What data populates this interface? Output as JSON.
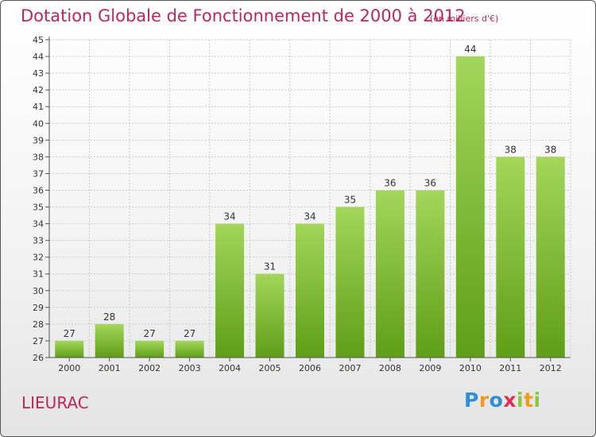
{
  "header": {
    "title": "Dotation Globale de Fonctionnement de 2000 à 2012",
    "subtitle": "(en milliers d'€)"
  },
  "footer": {
    "commune": "LIEURAC",
    "logo_text": "Proxiti",
    "logo_letters": [
      {
        "char": "P",
        "color": "#2e8fd6"
      },
      {
        "char": "r",
        "color": "#f29a1e"
      },
      {
        "char": "o",
        "color": "#2e8fd6"
      },
      {
        "char": "x",
        "color": "#e0305a"
      },
      {
        "char": "i",
        "color": "#8dc63f"
      },
      {
        "char": "t",
        "color": "#f29a1e"
      },
      {
        "char": "i",
        "color": "#8dc63f"
      }
    ]
  },
  "colors": {
    "bar_top": "#a3d65a",
    "bar_bottom": "#5f9e17",
    "title": "#c0245c",
    "grid": "#c8c8c8"
  },
  "chart_data": {
    "type": "bar",
    "categories": [
      "2000",
      "2001",
      "2002",
      "2003",
      "2004",
      "2005",
      "2006",
      "2007",
      "2008",
      "2009",
      "2010",
      "2011",
      "2012"
    ],
    "values": [
      27,
      28,
      27,
      27,
      34,
      31,
      34,
      35,
      36,
      36,
      44,
      38,
      38
    ],
    "ylim": [
      26,
      45
    ],
    "yticks": [
      26,
      27,
      28,
      29,
      30,
      31,
      32,
      33,
      34,
      35,
      36,
      37,
      38,
      39,
      40,
      41,
      42,
      43,
      44,
      45
    ],
    "grid": true,
    "data_labels": true
  }
}
